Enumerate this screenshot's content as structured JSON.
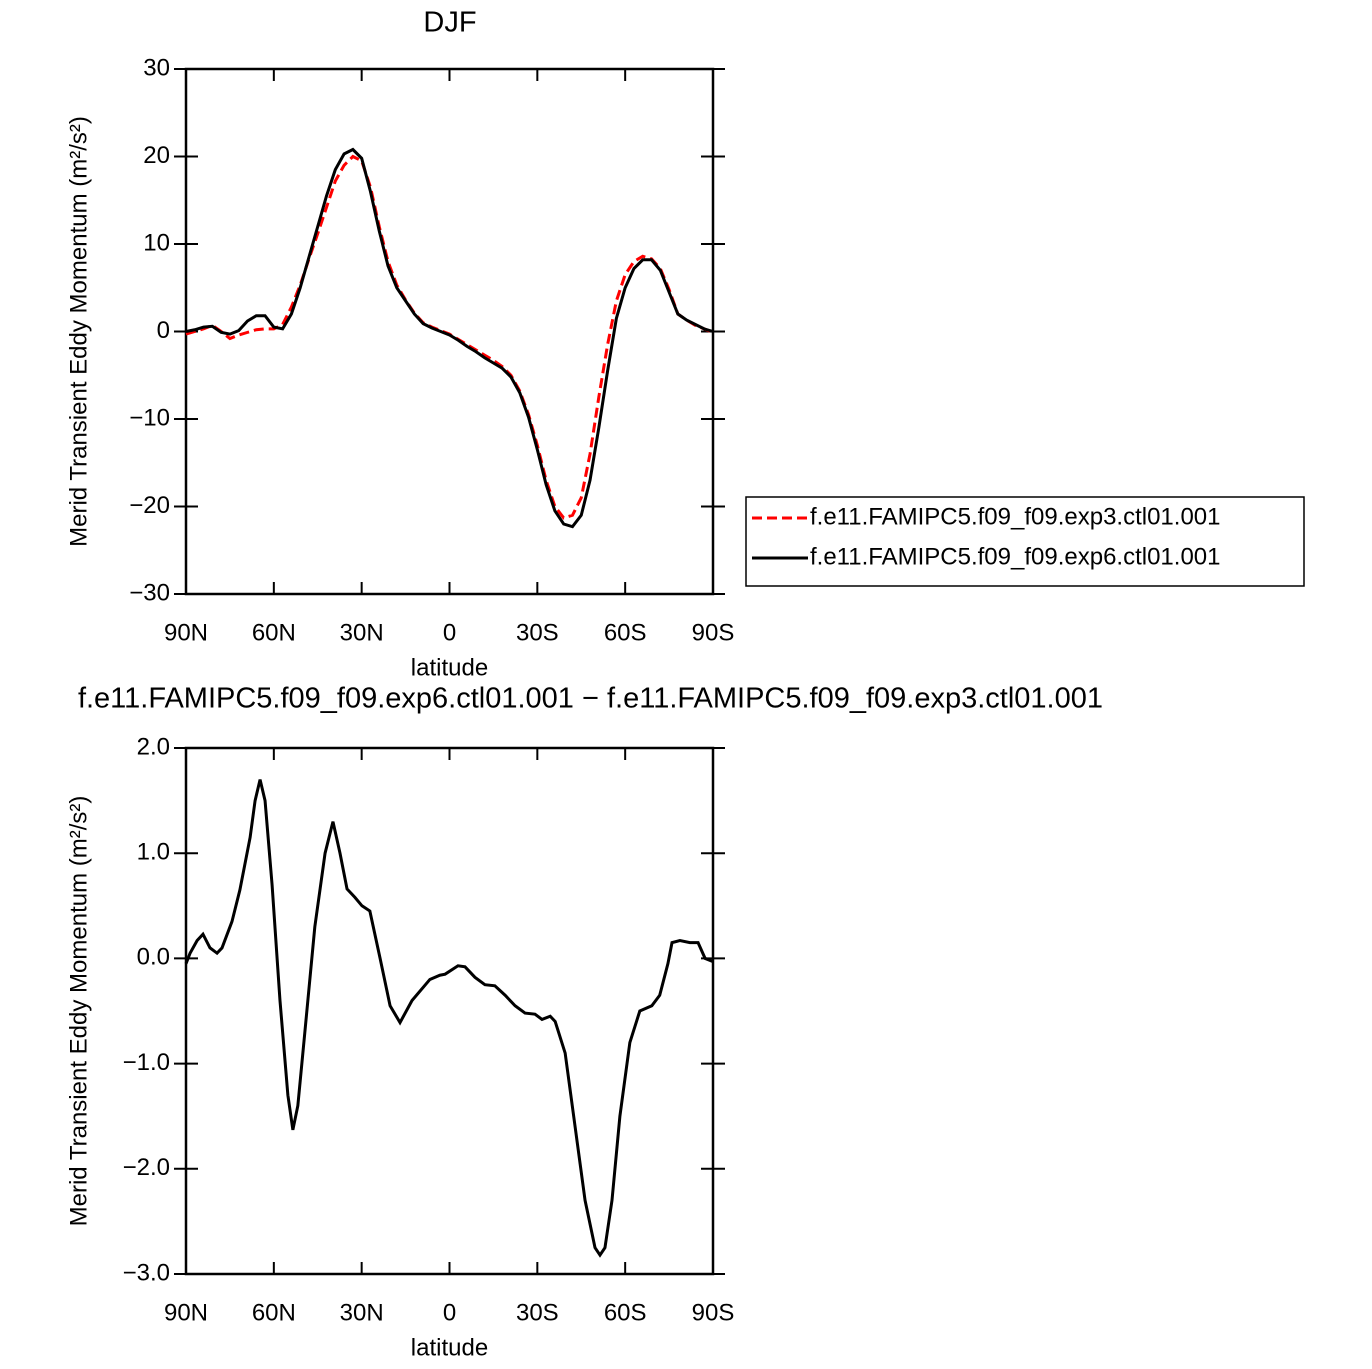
{
  "chart_data": [
    {
      "type": "line",
      "title": "DJF",
      "xlabel": "latitude",
      "ylabel": "Merid Transient Eddy Momentum (m²/s²)",
      "xlim": [
        90,
        -90
      ],
      "ylim": [
        -30,
        30
      ],
      "xticks": [
        {
          "value": 90,
          "label": "90N"
        },
        {
          "value": 60,
          "label": "60N"
        },
        {
          "value": 30,
          "label": "30N"
        },
        0,
        {
          "value": -30,
          "label": "30S"
        },
        {
          "value": -60,
          "label": "60S"
        },
        {
          "value": -90,
          "label": "90S"
        }
      ],
      "yticks": [
        {
          "value": -30,
          "label": "−30"
        },
        {
          "value": -20,
          "label": "−20"
        },
        {
          "value": -10,
          "label": "−10"
        },
        0,
        10,
        20,
        30
      ],
      "legend": "right",
      "x": [
        90,
        87,
        84,
        81,
        78,
        75,
        72,
        69,
        66,
        63,
        60,
        57,
        54,
        51,
        48,
        45,
        42,
        39,
        36,
        33,
        30,
        27,
        24,
        21,
        18,
        15,
        12,
        9,
        6,
        3,
        0,
        -3,
        -6,
        -9,
        -12,
        -15,
        -18,
        -21,
        -24,
        -27,
        -30,
        -33,
        -36,
        -39,
        -42,
        -45,
        -48,
        -51,
        -54,
        -57,
        -60,
        -63,
        -66,
        -69,
        -72,
        -75,
        -78,
        -81,
        -84,
        -87,
        -90
      ],
      "series": [
        {
          "name": "f.e11.FAMIPC5.f09_f09.exp3.ctl01.001",
          "color": "#ff0000",
          "linestyle": "dashed",
          "values": [
            -0.3,
            0,
            0.3,
            0.7,
            0,
            -0.8,
            -0.4,
            -0.1,
            0.2,
            0.3,
            0.3,
            0.8,
            2.8,
            5.3,
            8.3,
            11.2,
            14.2,
            17.2,
            19,
            20,
            19.5,
            16.5,
            12,
            8,
            5.3,
            3.6,
            2.1,
            1,
            0.5,
            0.1,
            -0.3,
            -0.9,
            -1.5,
            -2.1,
            -2.7,
            -3.3,
            -4,
            -5,
            -6.8,
            -9.5,
            -13,
            -17,
            -20,
            -21.3,
            -21,
            -19,
            -14,
            -7.5,
            -1.5,
            3.5,
            6.5,
            8,
            8.6,
            8.3,
            7.2,
            4.8,
            2,
            1.3,
            0.7,
            0.3,
            -0.1
          ]
        },
        {
          "name": "f.e11.FAMIPC5.f09_f09.exp6.ctl01.001",
          "color": "#000000",
          "linestyle": "solid",
          "values": [
            0,
            0.2,
            0.5,
            0.6,
            -0.1,
            -0.3,
            0.1,
            1.2,
            1.8,
            1.8,
            0.5,
            0.3,
            2,
            5,
            8.5,
            12,
            15.5,
            18.5,
            20.3,
            20.8,
            19.8,
            16,
            11.5,
            7.5,
            5,
            3.5,
            2,
            0.9,
            0.4,
            0,
            -0.4,
            -1,
            -1.7,
            -2.3,
            -3,
            -3.6,
            -4.2,
            -5.2,
            -7,
            -9.8,
            -13.5,
            -17.5,
            -20.5,
            -22,
            -22.3,
            -21,
            -17,
            -11,
            -4.5,
            1.5,
            5,
            7.2,
            8.2,
            8.2,
            7,
            4.5,
            2,
            1.3,
            0.8,
            0.3,
            0
          ]
        }
      ]
    },
    {
      "type": "line",
      "title": "f.e11.FAMIPC5.f09_f09.exp6.ctl01.001 − f.e11.FAMIPC5.f09_f09.exp3.ctl01.001",
      "xlabel": "latitude",
      "ylabel": "Merid Transient Eddy Momentum (m²/s²)",
      "xlim": [
        90,
        -90
      ],
      "ylim": [
        -3,
        2
      ],
      "xticks": [
        {
          "value": 90,
          "label": "90N"
        },
        {
          "value": 60,
          "label": "60N"
        },
        {
          "value": 30,
          "label": "30N"
        },
        0,
        {
          "value": -30,
          "label": "30S"
        },
        {
          "value": -60,
          "label": "60S"
        },
        {
          "value": -90,
          "label": "90S"
        }
      ],
      "yticks": [
        {
          "value": -3,
          "label": "−3.0"
        },
        {
          "value": -2,
          "label": "−2.0"
        },
        {
          "value": -1,
          "label": "−1.0"
        },
        {
          "value": 0,
          "label": "0.0"
        },
        {
          "value": 1,
          "label": "1.0"
        },
        {
          "value": 2,
          "label": "2.0"
        }
      ],
      "x": [
        90,
        88.6,
        86.2,
        84.2,
        81.8,
        79.4,
        77.7,
        74.3,
        71.6,
        68.1,
        66.4,
        64.7,
        63,
        60.6,
        57.9,
        55.2,
        53.5,
        51.8,
        49.4,
        46,
        42.5,
        39.8,
        37.4,
        35,
        32.3,
        29.9,
        27.2,
        23.7,
        20.3,
        16.9,
        12.8,
        6.7,
        3.3,
        1.5,
        -2.9,
        -5.3,
        -8.7,
        -12.1,
        -15.5,
        -19,
        -22.4,
        -25.8,
        -29.2,
        -31.6,
        -34.4,
        -36.1,
        -39.5,
        -42.9,
        -46.3,
        -49.7,
        -51.4,
        -53.1,
        -55.5,
        -58.2,
        -61.6,
        -65,
        -69.1,
        -71.8,
        -74.6,
        -76,
        -78.7,
        -82.1,
        -84.9,
        -87.3,
        -90
      ],
      "series": [
        {
          "color": "#000000",
          "linestyle": "solid",
          "values": [
            -0.05,
            0.05,
            0.17,
            0.23,
            0.1,
            0.05,
            0.1,
            0.35,
            0.65,
            1.15,
            1.5,
            1.7,
            1.5,
            0.7,
            -0.4,
            -1.3,
            -1.63,
            -1.4,
            -0.7,
            0.3,
            1.0,
            1.3,
            1.0,
            0.66,
            0.58,
            0.5,
            0.45,
            0.0,
            -0.45,
            -0.61,
            -0.4,
            -0.2,
            -0.16,
            -0.15,
            -0.07,
            -0.08,
            -0.18,
            -0.25,
            -0.26,
            -0.35,
            -0.45,
            -0.52,
            -0.53,
            -0.58,
            -0.55,
            -0.6,
            -0.9,
            -1.6,
            -2.3,
            -2.75,
            -2.82,
            -2.75,
            -2.3,
            -1.5,
            -0.8,
            -0.5,
            -0.45,
            -0.35,
            -0.05,
            0.15,
            0.17,
            0.15,
            0.15,
            0.0,
            -0.03
          ]
        }
      ]
    }
  ]
}
